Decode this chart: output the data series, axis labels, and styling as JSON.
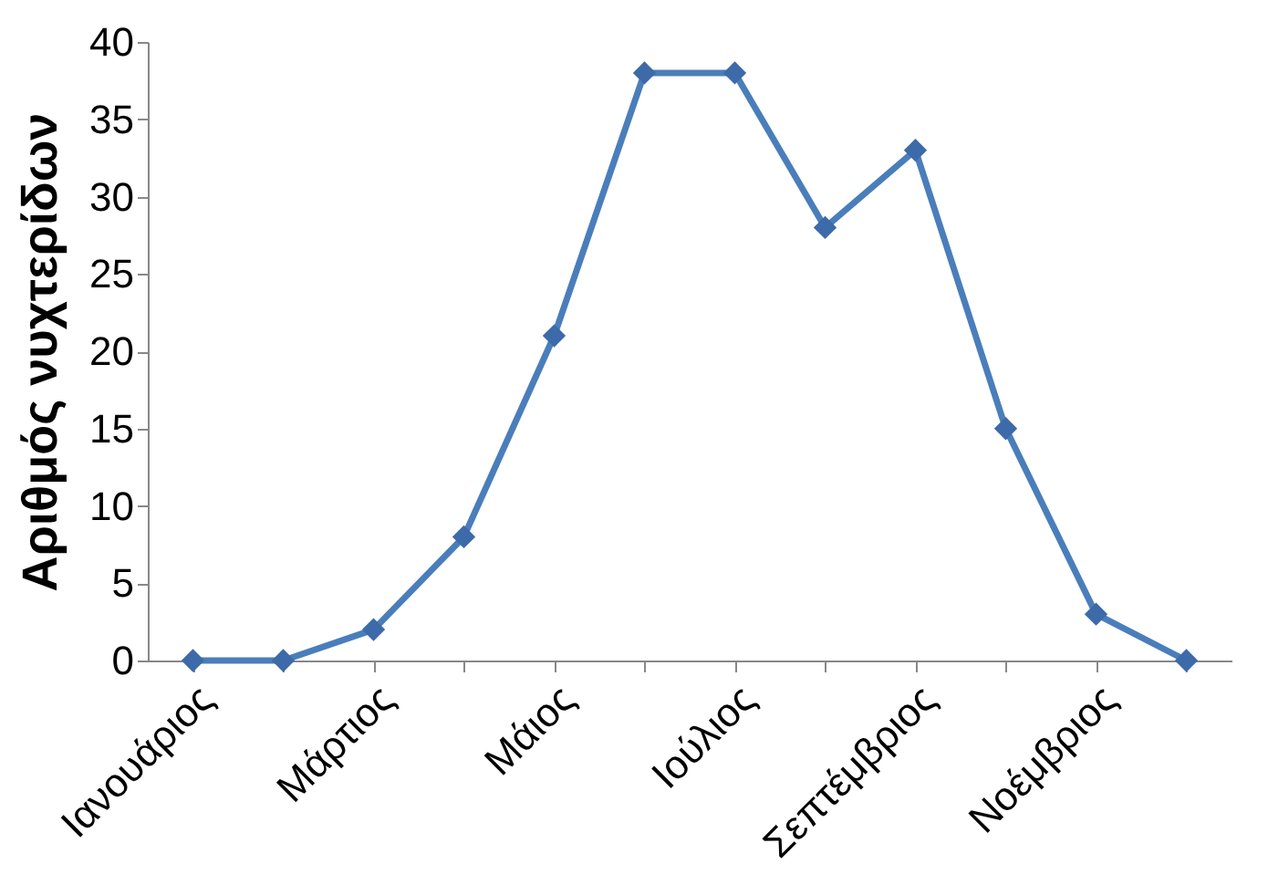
{
  "chart_data": {
    "type": "line",
    "ylabel": "Αριθμός νυχτερίδων",
    "categories": [
      "Ιανουάριος",
      null,
      "Μάρτιος",
      null,
      "Μάιος",
      null,
      "Ιούλιος",
      null,
      "Σεπτέμβριος",
      null,
      "Νοέμβριος",
      null
    ],
    "series": [
      {
        "color": "#4a7ebb",
        "values": [
          0,
          0,
          2,
          8,
          21,
          38,
          38,
          28,
          33,
          15,
          3,
          0
        ]
      }
    ],
    "ylim": [
      0,
      40
    ],
    "yticks": [
      0,
      5,
      10,
      15,
      20,
      25,
      30,
      35,
      40
    ],
    "grid": false,
    "marker": "diamond",
    "line_style": "solid"
  }
}
